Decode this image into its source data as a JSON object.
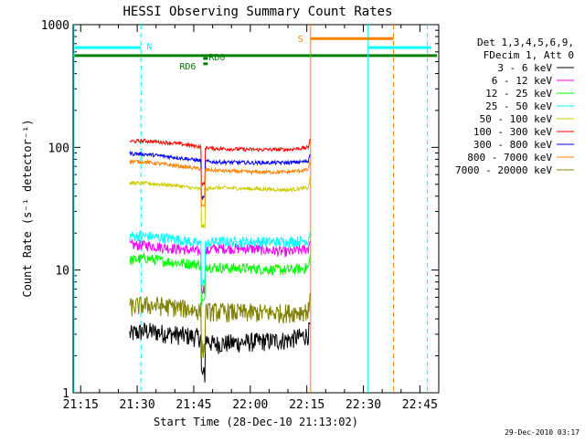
{
  "chart_data": {
    "type": "line",
    "title": "HESSI Observing Summary Count Rates",
    "xlabel": "Start Time (28-Dec-10 21:13:02)",
    "ylabel": "Count Rate (s⁻¹ detector⁻¹)",
    "y_scale": "log",
    "ylim": [
      1,
      1000
    ],
    "xlim": [
      "21:13",
      "22:50"
    ],
    "x_ticks": [
      "21:15",
      "21:30",
      "21:45",
      "22:00",
      "22:15",
      "22:30",
      "22:45"
    ],
    "y_ticks": [
      "1",
      "10",
      "100",
      "1000"
    ],
    "footer": "29-Dec-2010 03:17",
    "legend": {
      "position": "right",
      "header": [
        "Det 1,3,4,5,6,9,",
        "FDecim 1, Att 0"
      ],
      "entries": [
        {
          "label": "3 - 6 keV",
          "color": "#000000"
        },
        {
          "label": "6 - 12 keV",
          "color": "#ff00ff"
        },
        {
          "label": "12 - 25 keV",
          "color": "#00ff00"
        },
        {
          "label": "25 - 50 keV",
          "color": "#00ffff"
        },
        {
          "label": "50 - 100 keV",
          "color": "#cccc00"
        },
        {
          "label": "100 - 300 keV",
          "color": "#ff0000"
        },
        {
          "label": "300 - 800 keV",
          "color": "#0000ff"
        },
        {
          "label": "800 - 7000 keV",
          "color": "#ff8000"
        },
        {
          "label": "7000 - 20000 keV",
          "color": "#808000"
        }
      ]
    },
    "series": [
      {
        "name": "3 - 6 keV",
        "color": "#000000",
        "x": [
          "21:28",
          "21:32",
          "21:40",
          "21:48",
          "21:50",
          "22:00",
          "22:10",
          "22:16"
        ],
        "values": [
          3.0,
          3.2,
          3.0,
          2.8,
          2.5,
          2.6,
          2.7,
          3.0
        ]
      },
      {
        "name": "6 - 12 keV",
        "color": "#ff00ff",
        "x": [
          "21:28",
          "21:32",
          "21:40",
          "21:48",
          "21:50",
          "22:00",
          "22:10",
          "22:16"
        ],
        "values": [
          16,
          16,
          15,
          14,
          15,
          15,
          14,
          15
        ]
      },
      {
        "name": "12 - 25 keV",
        "color": "#00ff00",
        "x": [
          "21:28",
          "21:32",
          "21:40",
          "21:48",
          "21:50",
          "22:00",
          "22:10",
          "22:16"
        ],
        "values": [
          12,
          12.5,
          11.5,
          11,
          10.5,
          10.3,
          10.0,
          10.5
        ]
      },
      {
        "name": "25 - 50 keV",
        "color": "#00ffff",
        "x": [
          "21:28",
          "21:32",
          "21:40",
          "21:48",
          "21:50",
          "22:00",
          "22:10",
          "22:16"
        ],
        "values": [
          19,
          19,
          18,
          16,
          17,
          17,
          17,
          17.5
        ]
      },
      {
        "name": "50 - 100 keV",
        "color": "#cccc00",
        "x": [
          "21:28",
          "21:32",
          "21:40",
          "21:48",
          "21:50",
          "22:00",
          "22:10",
          "22:16"
        ],
        "values": [
          51,
          51,
          49,
          45,
          47,
          46,
          45,
          47
        ]
      },
      {
        "name": "100 - 300 keV",
        "color": "#ff0000",
        "x": [
          "21:28",
          "21:32",
          "21:40",
          "21:48",
          "21:50",
          "22:00",
          "22:10",
          "22:16"
        ],
        "values": [
          112,
          113,
          108,
          100,
          98,
          96,
          96,
          100
        ]
      },
      {
        "name": "300 - 800 keV",
        "color": "#0000ff",
        "x": [
          "21:28",
          "21:32",
          "21:40",
          "21:48",
          "21:50",
          "22:00",
          "22:10",
          "22:16"
        ],
        "values": [
          89,
          88,
          83,
          77,
          76,
          75,
          75,
          77
        ]
      },
      {
        "name": "800 - 7000 keV",
        "color": "#ff8000",
        "x": [
          "21:28",
          "21:32",
          "21:40",
          "21:48",
          "21:50",
          "22:00",
          "22:10",
          "22:16"
        ],
        "values": [
          77,
          76,
          71,
          66,
          65,
          63,
          63,
          66
        ]
      },
      {
        "name": "7000 - 20000 keV",
        "color": "#808000",
        "x": [
          "21:28",
          "21:32",
          "21:40",
          "21:48",
          "21:50",
          "22:00",
          "22:10",
          "22:16"
        ],
        "values": [
          5.0,
          5.2,
          5.0,
          4.6,
          4.6,
          4.5,
          4.5,
          4.7
        ]
      }
    ],
    "markers": {
      "N": {
        "label": "N",
        "color": "#00ffff",
        "level": 650,
        "spans": [
          [
            "21:13",
            "21:31"
          ],
          [
            "22:31",
            "22:48"
          ]
        ],
        "dashed_lines": [
          "21:31",
          "22:47"
        ],
        "solid_lines": [
          "21:13",
          "22:31"
        ]
      },
      "S": {
        "label": "S",
        "color": "#ff8000",
        "level": 770,
        "span": [
          "22:16",
          "22:38"
        ],
        "dashed_lines": [
          "22:38"
        ],
        "solid_lines": [
          "22:16"
        ]
      },
      "SAA": {
        "color": "#008000",
        "level": 560,
        "span": [
          "21:13",
          "22:50"
        ]
      },
      "RD": [
        {
          "label": "RD6",
          "color": "#008000",
          "time": "21:48",
          "level": 480
        },
        {
          "label": "RD0",
          "color": "#008000",
          "time": "21:48",
          "level": 530
        }
      ]
    }
  }
}
